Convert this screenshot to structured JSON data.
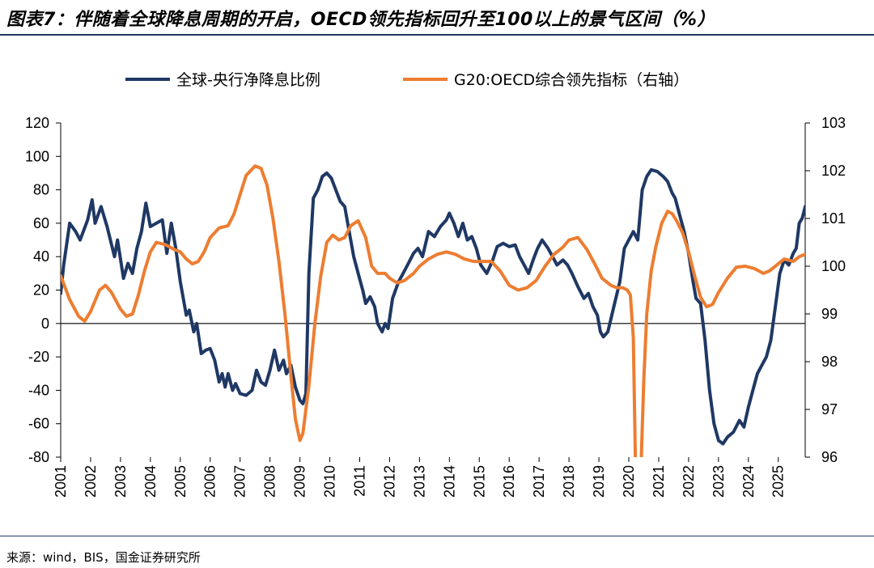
{
  "figure": {
    "title": "图表7：伴随着全球降息周期的开启，OECD领先指标回升至100以上的景气区间（%）",
    "source": "来源：wind，BIS，国金证券研究所"
  },
  "chart_data": {
    "type": "line",
    "title": "",
    "xlabel": "",
    "ylabel_left": "",
    "ylabel_right": "",
    "grid": false,
    "legend_position": "top-center",
    "x_ticks": [
      "2001",
      "2002",
      "2003",
      "2004",
      "2005",
      "2006",
      "2007",
      "2008",
      "2009",
      "2010",
      "2011",
      "2012",
      "2013",
      "2014",
      "2015",
      "2016",
      "2017",
      "2018",
      "2019",
      "2020",
      "2021",
      "2022",
      "2023",
      "2024",
      "2025"
    ],
    "y_left_ticks": [
      120,
      100,
      80,
      60,
      40,
      20,
      0,
      -20,
      -40,
      -60,
      -80
    ],
    "y_right_ticks": [
      103,
      102,
      101,
      100,
      99,
      98,
      97,
      96
    ],
    "ylim_left": [
      -80,
      120
    ],
    "ylim_right": [
      96,
      103
    ],
    "xlim": [
      2001.0,
      2025.9
    ],
    "series": [
      {
        "name": "全球-央行净降息比例",
        "axis": "left",
        "color": "#1f3864",
        "points": [
          [
            2001.0,
            18
          ],
          [
            2001.1,
            35
          ],
          [
            2001.3,
            60
          ],
          [
            2001.5,
            55
          ],
          [
            2001.65,
            50
          ],
          [
            2001.9,
            62
          ],
          [
            2002.05,
            74
          ],
          [
            2002.15,
            60
          ],
          [
            2002.35,
            70
          ],
          [
            2002.55,
            58
          ],
          [
            2002.8,
            40
          ],
          [
            2002.9,
            50
          ],
          [
            2003.1,
            27
          ],
          [
            2003.25,
            36
          ],
          [
            2003.4,
            30
          ],
          [
            2003.55,
            45
          ],
          [
            2003.7,
            55
          ],
          [
            2003.85,
            72
          ],
          [
            2004.0,
            58
          ],
          [
            2004.2,
            60
          ],
          [
            2004.4,
            62
          ],
          [
            2004.55,
            42
          ],
          [
            2004.7,
            60
          ],
          [
            2004.85,
            45
          ],
          [
            2005.0,
            25
          ],
          [
            2005.2,
            5
          ],
          [
            2005.3,
            8
          ],
          [
            2005.45,
            -5
          ],
          [
            2005.55,
            0
          ],
          [
            2005.7,
            -18
          ],
          [
            2005.85,
            -16
          ],
          [
            2006.0,
            -15
          ],
          [
            2006.15,
            -22
          ],
          [
            2006.3,
            -35
          ],
          [
            2006.4,
            -30
          ],
          [
            2006.5,
            -38
          ],
          [
            2006.6,
            -30
          ],
          [
            2006.75,
            -40
          ],
          [
            2006.85,
            -36
          ],
          [
            2007.0,
            -42
          ],
          [
            2007.2,
            -43
          ],
          [
            2007.4,
            -40
          ],
          [
            2007.55,
            -28
          ],
          [
            2007.7,
            -35
          ],
          [
            2007.85,
            -37
          ],
          [
            2008.0,
            -28
          ],
          [
            2008.15,
            -16
          ],
          [
            2008.3,
            -28
          ],
          [
            2008.45,
            -22
          ],
          [
            2008.55,
            -30
          ],
          [
            2008.7,
            -25
          ],
          [
            2008.85,
            -38
          ],
          [
            2009.0,
            -46
          ],
          [
            2009.1,
            -48
          ],
          [
            2009.2,
            -42
          ],
          [
            2009.3,
            30
          ],
          [
            2009.45,
            75
          ],
          [
            2009.6,
            80
          ],
          [
            2009.75,
            88
          ],
          [
            2009.9,
            90
          ],
          [
            2010.05,
            87
          ],
          [
            2010.2,
            80
          ],
          [
            2010.35,
            73
          ],
          [
            2010.5,
            70
          ],
          [
            2010.65,
            55
          ],
          [
            2010.8,
            40
          ],
          [
            2010.95,
            30
          ],
          [
            2011.1,
            20
          ],
          [
            2011.2,
            12
          ],
          [
            2011.35,
            16
          ],
          [
            2011.5,
            10
          ],
          [
            2011.6,
            0
          ],
          [
            2011.75,
            -5
          ],
          [
            2011.85,
            0
          ],
          [
            2011.95,
            -3
          ],
          [
            2012.1,
            15
          ],
          [
            2012.3,
            25
          ],
          [
            2012.45,
            30
          ],
          [
            2012.6,
            35
          ],
          [
            2012.8,
            42
          ],
          [
            2012.95,
            45
          ],
          [
            2013.1,
            40
          ],
          [
            2013.3,
            55
          ],
          [
            2013.5,
            52
          ],
          [
            2013.7,
            58
          ],
          [
            2013.9,
            62
          ],
          [
            2014.0,
            66
          ],
          [
            2014.15,
            60
          ],
          [
            2014.3,
            52
          ],
          [
            2014.45,
            60
          ],
          [
            2014.6,
            50
          ],
          [
            2014.75,
            52
          ],
          [
            2014.9,
            45
          ],
          [
            2015.05,
            35
          ],
          [
            2015.25,
            30
          ],
          [
            2015.45,
            38
          ],
          [
            2015.6,
            46
          ],
          [
            2015.8,
            48
          ],
          [
            2016.0,
            46
          ],
          [
            2016.2,
            47
          ],
          [
            2016.35,
            40
          ],
          [
            2016.5,
            35
          ],
          [
            2016.65,
            30
          ],
          [
            2016.8,
            38
          ],
          [
            2016.95,
            45
          ],
          [
            2017.1,
            50
          ],
          [
            2017.3,
            45
          ],
          [
            2017.45,
            40
          ],
          [
            2017.6,
            35
          ],
          [
            2017.8,
            38
          ],
          [
            2017.95,
            35
          ],
          [
            2018.1,
            30
          ],
          [
            2018.3,
            22
          ],
          [
            2018.5,
            15
          ],
          [
            2018.65,
            18
          ],
          [
            2018.8,
            10
          ],
          [
            2018.95,
            5
          ],
          [
            2019.05,
            -5
          ],
          [
            2019.15,
            -8
          ],
          [
            2019.3,
            -5
          ],
          [
            2019.5,
            10
          ],
          [
            2019.7,
            25
          ],
          [
            2019.85,
            45
          ],
          [
            2020.0,
            50
          ],
          [
            2020.15,
            55
          ],
          [
            2020.3,
            50
          ],
          [
            2020.45,
            80
          ],
          [
            2020.6,
            88
          ],
          [
            2020.75,
            92
          ],
          [
            2020.95,
            91
          ],
          [
            2021.15,
            88
          ],
          [
            2021.3,
            85
          ],
          [
            2021.45,
            78
          ],
          [
            2021.55,
            75
          ],
          [
            2021.7,
            65
          ],
          [
            2021.85,
            55
          ],
          [
            2022.0,
            42
          ],
          [
            2022.15,
            25
          ],
          [
            2022.25,
            15
          ],
          [
            2022.4,
            12
          ],
          [
            2022.55,
            -10
          ],
          [
            2022.7,
            -40
          ],
          [
            2022.85,
            -60
          ],
          [
            2023.0,
            -70
          ],
          [
            2023.15,
            -72
          ],
          [
            2023.3,
            -68
          ],
          [
            2023.5,
            -65
          ],
          [
            2023.7,
            -58
          ],
          [
            2023.85,
            -62
          ],
          [
            2024.0,
            -50
          ],
          [
            2024.15,
            -40
          ],
          [
            2024.3,
            -30
          ],
          [
            2024.45,
            -25
          ],
          [
            2024.6,
            -20
          ],
          [
            2024.75,
            -10
          ],
          [
            2024.9,
            10
          ],
          [
            2025.05,
            30
          ],
          [
            2025.2,
            38
          ],
          [
            2025.35,
            35
          ],
          [
            2025.5,
            42
          ],
          [
            2025.6,
            45
          ],
          [
            2025.7,
            60
          ],
          [
            2025.8,
            63
          ],
          [
            2025.9,
            70
          ]
        ]
      },
      {
        "name": "G20:OECD综合领先指标（右轴）",
        "axis": "right",
        "color": "#ed7d31",
        "points": [
          [
            2001.0,
            99.8
          ],
          [
            2001.3,
            99.3
          ],
          [
            2001.6,
            98.95
          ],
          [
            2001.8,
            98.85
          ],
          [
            2002.0,
            99.05
          ],
          [
            2002.3,
            99.5
          ],
          [
            2002.5,
            99.6
          ],
          [
            2002.7,
            99.45
          ],
          [
            2003.0,
            99.1
          ],
          [
            2003.2,
            98.95
          ],
          [
            2003.4,
            99.0
          ],
          [
            2003.6,
            99.4
          ],
          [
            2003.8,
            99.9
          ],
          [
            2004.0,
            100.3
          ],
          [
            2004.2,
            100.5
          ],
          [
            2004.5,
            100.45
          ],
          [
            2004.8,
            100.35
          ],
          [
            2005.0,
            100.3
          ],
          [
            2005.2,
            100.15
          ],
          [
            2005.4,
            100.05
          ],
          [
            2005.6,
            100.1
          ],
          [
            2005.8,
            100.3
          ],
          [
            2006.0,
            100.6
          ],
          [
            2006.3,
            100.8
          ],
          [
            2006.6,
            100.85
          ],
          [
            2006.8,
            101.1
          ],
          [
            2007.0,
            101.5
          ],
          [
            2007.2,
            101.9
          ],
          [
            2007.5,
            102.1
          ],
          [
            2007.7,
            102.05
          ],
          [
            2007.9,
            101.7
          ],
          [
            2008.1,
            101.0
          ],
          [
            2008.3,
            100.1
          ],
          [
            2008.5,
            99.0
          ],
          [
            2008.7,
            97.7
          ],
          [
            2008.85,
            96.8
          ],
          [
            2009.0,
            96.35
          ],
          [
            2009.1,
            96.5
          ],
          [
            2009.3,
            97.5
          ],
          [
            2009.5,
            98.8
          ],
          [
            2009.7,
            99.8
          ],
          [
            2009.9,
            100.5
          ],
          [
            2010.1,
            100.65
          ],
          [
            2010.3,
            100.55
          ],
          [
            2010.5,
            100.6
          ],
          [
            2010.7,
            100.85
          ],
          [
            2010.95,
            100.95
          ],
          [
            2011.2,
            100.6
          ],
          [
            2011.4,
            100.0
          ],
          [
            2011.6,
            99.85
          ],
          [
            2011.85,
            99.85
          ],
          [
            2012.0,
            99.75
          ],
          [
            2012.25,
            99.65
          ],
          [
            2012.5,
            99.7
          ],
          [
            2012.8,
            99.85
          ],
          [
            2013.0,
            100.0
          ],
          [
            2013.3,
            100.15
          ],
          [
            2013.6,
            100.25
          ],
          [
            2013.9,
            100.3
          ],
          [
            2014.2,
            100.25
          ],
          [
            2014.5,
            100.15
          ],
          [
            2014.8,
            100.1
          ],
          [
            2015.1,
            100.1
          ],
          [
            2015.4,
            100.1
          ],
          [
            2015.7,
            99.9
          ],
          [
            2016.0,
            99.6
          ],
          [
            2016.3,
            99.5
          ],
          [
            2016.6,
            99.55
          ],
          [
            2016.9,
            99.7
          ],
          [
            2017.2,
            100.0
          ],
          [
            2017.5,
            100.25
          ],
          [
            2017.8,
            100.4
          ],
          [
            2018.0,
            100.55
          ],
          [
            2018.3,
            100.6
          ],
          [
            2018.6,
            100.35
          ],
          [
            2018.9,
            100.0
          ],
          [
            2019.1,
            99.75
          ],
          [
            2019.4,
            99.6
          ],
          [
            2019.6,
            99.55
          ],
          [
            2019.8,
            99.55
          ],
          [
            2019.95,
            99.5
          ],
          [
            2020.05,
            99.4
          ],
          [
            2020.15,
            98.5
          ],
          [
            2020.22,
            96.0
          ],
          [
            2020.3,
            95.0
          ],
          [
            2020.42,
            96.0
          ],
          [
            2020.5,
            97.6
          ],
          [
            2020.6,
            99.0
          ],
          [
            2020.75,
            99.9
          ],
          [
            2020.9,
            100.4
          ],
          [
            2021.1,
            100.9
          ],
          [
            2021.3,
            101.15
          ],
          [
            2021.45,
            101.1
          ],
          [
            2021.6,
            100.95
          ],
          [
            2021.8,
            100.7
          ],
          [
            2022.0,
            100.3
          ],
          [
            2022.2,
            99.8
          ],
          [
            2022.4,
            99.35
          ],
          [
            2022.6,
            99.15
          ],
          [
            2022.8,
            99.2
          ],
          [
            2023.0,
            99.45
          ],
          [
            2023.3,
            99.75
          ],
          [
            2023.6,
            99.98
          ],
          [
            2023.9,
            100.0
          ],
          [
            2024.2,
            99.95
          ],
          [
            2024.5,
            99.85
          ],
          [
            2024.7,
            99.9
          ],
          [
            2024.9,
            100.0
          ],
          [
            2025.2,
            100.15
          ],
          [
            2025.5,
            100.1
          ],
          [
            2025.7,
            100.2
          ],
          [
            2025.9,
            100.25
          ]
        ]
      }
    ]
  }
}
